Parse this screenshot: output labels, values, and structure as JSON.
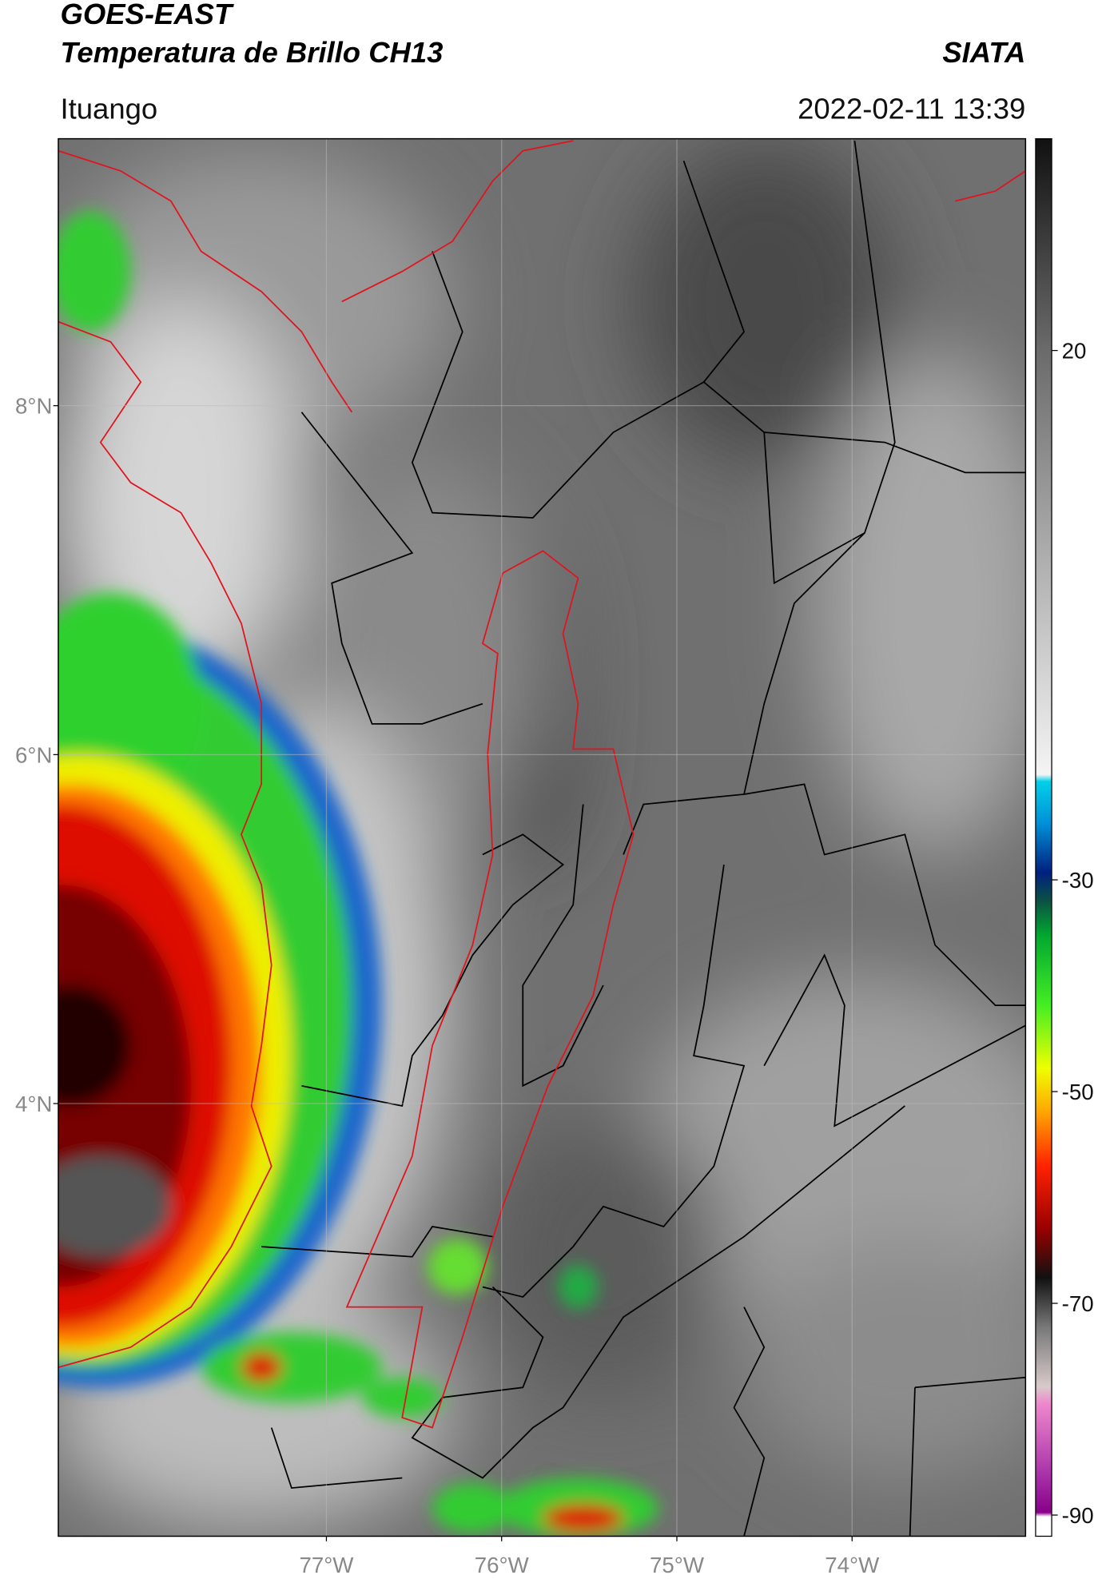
{
  "header": {
    "title": "GOES-EAST",
    "subtitle": "Temperatura de Brillo CH13",
    "source": "SIATA",
    "location": "Ituango",
    "datetime": "2022-02-11 13:39"
  },
  "map": {
    "lonlim": [
      -78.53,
      -73.01
    ],
    "latlim": [
      1.52,
      9.53
    ],
    "lonticks": [
      {
        "value": -77,
        "label": "77°W"
      },
      {
        "value": -76,
        "label": "76°W"
      },
      {
        "value": -75,
        "label": "75°W"
      },
      {
        "value": -74,
        "label": "74°W"
      }
    ],
    "latticks": [
      {
        "value": 8,
        "label": "8°N"
      },
      {
        "value": 6,
        "label": "6°N"
      },
      {
        "value": 4,
        "label": "4°N"
      }
    ],
    "grid": true
  },
  "colorbar": {
    "lim": [
      -92,
      40
    ],
    "ticks": [
      20,
      -30,
      -50,
      -70,
      -90
    ]
  }
}
